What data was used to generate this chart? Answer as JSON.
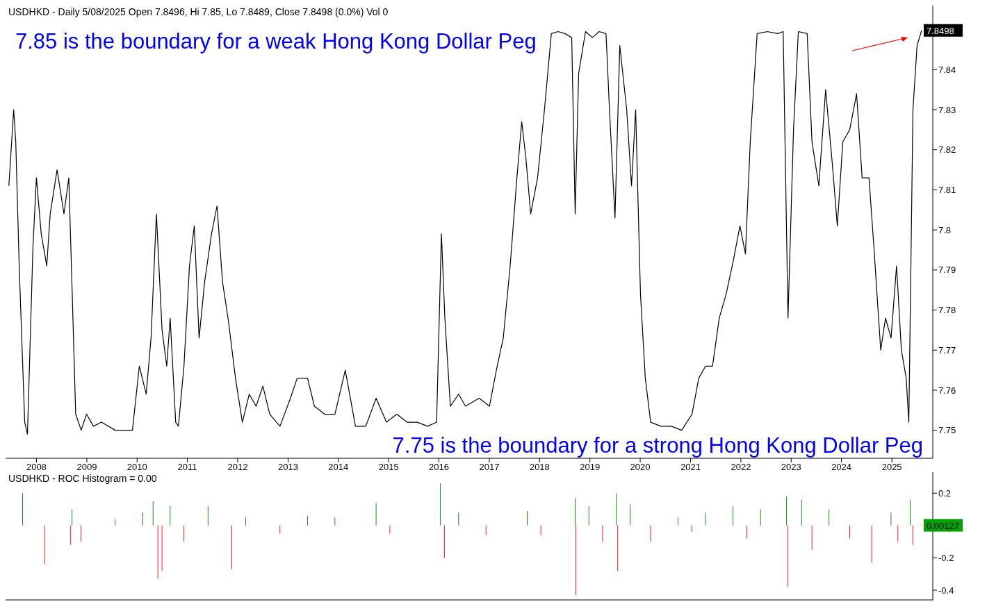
{
  "chart_data": [
    {
      "type": "line",
      "title": "USDHKD - Daily 5/08/2025 Open 7.8496, Hi 7.85, Lo 7.8489, Close 7.8498 (0.0%) Vol 0",
      "annotations": [
        "7.85 is the boundary for a weak Hong Kong Dollar Peg",
        "7.75 is the boundary for a strong Hong Kong Dollar Peg"
      ],
      "x": [
        "2007-06-15",
        "2007-07-20",
        "2007-08-04",
        "2007-08-29",
        "2007-10-08",
        "2007-10-28",
        "2007-12-07",
        "2008-01-01",
        "2008-02-05",
        "2008-03-16",
        "2008-04-10",
        "2008-05-30",
        "2008-07-19",
        "2008-08-23",
        "2008-09-17",
        "2008-10-12",
        "2008-11-21",
        "2008-12-30",
        "2009-02-18",
        "2009-04-17",
        "2009-07-26",
        "2009-11-28",
        "2010-01-17",
        "2010-03-08",
        "2010-04-12",
        "2010-05-21",
        "2010-07-01",
        "2010-08-04",
        "2010-08-29",
        "2010-10-08",
        "2010-10-28",
        "2010-12-07",
        "2011-01-16",
        "2011-02-20",
        "2011-03-27",
        "2011-05-06",
        "2011-06-25",
        "2011-08-04",
        "2011-09-13",
        "2011-10-27",
        "2011-12-16",
        "2012-02-04",
        "2012-03-25",
        "2012-05-14",
        "2012-07-02",
        "2012-08-21",
        "2012-11-03",
        "2013-01-18",
        "2013-03-08",
        "2013-05-22",
        "2013-07-11",
        "2013-09-24",
        "2013-12-07",
        "2014-02-20",
        "2014-05-05",
        "2014-07-19",
        "2014-10-02",
        "2014-12-16",
        "2015-03-01",
        "2015-05-15",
        "2015-07-28",
        "2015-10-11",
        "2015-12-15",
        "2016-01-19",
        "2016-02-13",
        "2016-03-24",
        "2016-05-23",
        "2016-07-12",
        "2016-10-19",
        "2017-01-02",
        "2017-02-21",
        "2017-04-12",
        "2017-06-01",
        "2017-07-20",
        "2017-08-24",
        "2017-09-23",
        "2017-10-28",
        "2017-12-17",
        "2018-02-05",
        "2018-03-27",
        "2018-05-15",
        "2018-07-04",
        "2018-08-22",
        "2018-09-16",
        "2018-10-11",
        "2018-11-30",
        "2019-01-19",
        "2019-03-09",
        "2019-04-28",
        "2019-05-23",
        "2019-07-02",
        "2019-08-06",
        "2019-09-25",
        "2019-10-30",
        "2019-11-29",
        "2020-01-03",
        "2020-02-07",
        "2020-03-17",
        "2020-05-31",
        "2020-08-14",
        "2020-10-28",
        "2021-01-11",
        "2021-03-01",
        "2021-04-20",
        "2021-06-09",
        "2021-07-28",
        "2021-09-16",
        "2021-11-05",
        "2021-12-25",
        "2022-02-03",
        "2022-03-10",
        "2022-04-29",
        "2022-07-12",
        "2022-09-25",
        "2022-11-04",
        "2022-12-09",
        "2023-01-18",
        "2023-02-22",
        "2023-04-27",
        "2023-06-01",
        "2023-07-21",
        "2023-09-08",
        "2023-10-28",
        "2023-12-02",
        "2024-01-11",
        "2024-03-01",
        "2024-04-20",
        "2024-05-30",
        "2024-07-19",
        "2024-08-23",
        "2024-10-12",
        "2024-11-16",
        "2024-12-26",
        "2025-02-04",
        "2025-03-11",
        "2025-04-15",
        "2025-05-04",
        "2025-06-03",
        "2025-07-03",
        "2025-08-05"
      ],
      "series": [
        {
          "color": "#000000",
          "values": [
            7.811,
            7.83,
            7.822,
            7.791,
            7.752,
            7.749,
            7.796,
            7.813,
            7.799,
            7.791,
            7.804,
            7.815,
            7.804,
            7.813,
            7.784,
            7.754,
            7.75,
            7.754,
            7.751,
            7.752,
            7.75,
            7.75,
            7.766,
            7.759,
            7.773,
            7.804,
            7.775,
            7.766,
            7.778,
            7.752,
            7.751,
            7.766,
            7.791,
            7.801,
            7.773,
            7.787,
            7.799,
            7.806,
            7.787,
            7.777,
            7.763,
            7.752,
            7.759,
            7.756,
            7.761,
            7.754,
            7.751,
            7.758,
            7.763,
            7.763,
            7.756,
            7.754,
            7.754,
            7.765,
            7.751,
            7.751,
            7.758,
            7.752,
            7.754,
            7.752,
            7.752,
            7.751,
            7.752,
            7.799,
            7.778,
            7.756,
            7.759,
            7.756,
            7.758,
            7.756,
            7.765,
            7.773,
            7.791,
            7.813,
            7.827,
            7.818,
            7.804,
            7.813,
            7.83,
            7.849,
            7.8495,
            7.849,
            7.848,
            7.804,
            7.839,
            7.8495,
            7.848,
            7.8495,
            7.849,
            7.83,
            7.803,
            7.846,
            7.83,
            7.811,
            7.83,
            7.784,
            7.763,
            7.752,
            7.751,
            7.751,
            7.75,
            7.754,
            7.763,
            7.766,
            7.766,
            7.778,
            7.784,
            7.792,
            7.801,
            7.794,
            7.822,
            7.849,
            7.8495,
            7.849,
            7.8495,
            7.778,
            7.825,
            7.8495,
            7.849,
            7.822,
            7.811,
            7.835,
            7.816,
            7.801,
            7.822,
            7.825,
            7.834,
            7.813,
            7.813,
            7.796,
            7.77,
            7.778,
            7.773,
            7.791,
            7.77,
            7.763,
            7.752,
            7.83,
            7.846,
            7.8498
          ],
          "value_labels": [
            null,
            null,
            null,
            null,
            null,
            null,
            null,
            null,
            null,
            null,
            null,
            null,
            null,
            null,
            null,
            null,
            null,
            null,
            null,
            null,
            null,
            null,
            null,
            null,
            null,
            null,
            null,
            null,
            null,
            null,
            null,
            null,
            null,
            null,
            null,
            null,
            null,
            null,
            null,
            null,
            null,
            null,
            null,
            null,
            null,
            null,
            null,
            null,
            null,
            null,
            null,
            null,
            null,
            null,
            null,
            null,
            null,
            null,
            null,
            null,
            null,
            null,
            null,
            null,
            null,
            null,
            null,
            null,
            null,
            null,
            null,
            null,
            null,
            null,
            null,
            null,
            null,
            null,
            null,
            null,
            null,
            null,
            null,
            null,
            null,
            null,
            null,
            null,
            null,
            null,
            null,
            null,
            null,
            null,
            null,
            null,
            null,
            null,
            null,
            null,
            null,
            null,
            null,
            null,
            null,
            null,
            null,
            null,
            null,
            null,
            null,
            null,
            null,
            null,
            null,
            null,
            null,
            null,
            null,
            null,
            null,
            null,
            null,
            null,
            null,
            null,
            null,
            null,
            null,
            null,
            null,
            null,
            null,
            null,
            null,
            null,
            null,
            null,
            null,
            "7.8498"
          ]
        }
      ],
      "xlim": [
        "2007-05-22",
        "2025-10-25"
      ],
      "xticks": [
        {
          "value": "2008-01-01",
          "label": "2008"
        },
        {
          "value": "2009-01-01",
          "label": "2009"
        },
        {
          "value": "2010-01-01",
          "label": "2010"
        },
        {
          "value": "2011-01-01",
          "label": "2011"
        },
        {
          "value": "2012-01-01",
          "label": "2012"
        },
        {
          "value": "2013-01-01",
          "label": "2013"
        },
        {
          "value": "2014-01-01",
          "label": "2014"
        },
        {
          "value": "2015-01-01",
          "label": "2015"
        },
        {
          "value": "2016-01-01",
          "label": "2016"
        },
        {
          "value": "2017-01-01",
          "label": "2017"
        },
        {
          "value": "2018-01-01",
          "label": "2018"
        },
        {
          "value": "2019-01-01",
          "label": "2019"
        },
        {
          "value": "2020-01-01",
          "label": "2020"
        },
        {
          "value": "2021-01-01",
          "label": "2021"
        },
        {
          "value": "2022-01-01",
          "label": "2022"
        },
        {
          "value": "2023-01-01",
          "label": "2023"
        },
        {
          "value": "2024-01-01",
          "label": "2024"
        },
        {
          "value": "2025-01-01",
          "label": "2025"
        }
      ],
      "ylim": [
        7.743,
        7.856
      ],
      "yticks": [
        7.75,
        7.76,
        7.77,
        7.78,
        7.79,
        7.8,
        7.81,
        7.82,
        7.83,
        7.84
      ],
      "marker": "none",
      "line_style": "solid"
    },
    {
      "type": "bar",
      "title": "USDHKD - ROC Histogram = 0.00",
      "x": [
        "2007-09-23",
        "2008-03-01",
        "2008-09-06",
        "2008-09-16",
        "2008-11-20",
        "2009-07-26",
        "2010-02-12",
        "2010-04-27",
        "2010-06-01",
        "2010-07-01",
        "2010-08-29",
        "2010-12-07",
        "2011-05-31",
        "2011-11-20",
        "2012-02-28",
        "2012-11-03",
        "2013-05-22",
        "2013-12-07",
        "2014-10-02",
        "2015-01-10",
        "2016-01-12",
        "2016-02-10",
        "2016-05-23",
        "2016-12-08",
        "2017-10-03",
        "2018-01-10",
        "2018-09-16",
        "2018-09-21",
        "2018-12-25",
        "2019-04-03",
        "2019-07-12",
        "2019-07-22",
        "2019-10-20",
        "2020-03-17",
        "2020-10-03",
        "2021-01-11",
        "2021-04-20",
        "2021-11-05",
        "2022-02-13",
        "2022-05-24",
        "2022-11-29",
        "2022-12-09",
        "2023-03-18",
        "2023-06-01",
        "2023-10-03",
        "2024-03-01",
        "2024-08-08",
        "2024-12-26",
        "2025-02-14",
        "2025-05-14",
        "2025-06-03",
        "2025-08-05"
      ],
      "values": [
        0.2,
        -0.24,
        -0.12,
        0.1,
        -0.1,
        0.04,
        0.08,
        0.15,
        -0.33,
        -0.28,
        0.12,
        -0.1,
        0.12,
        -0.27,
        0.05,
        -0.05,
        0.06,
        0.05,
        0.14,
        -0.05,
        0.26,
        -0.2,
        0.08,
        -0.06,
        0.09,
        -0.06,
        0.17,
        -0.43,
        0.12,
        -0.1,
        0.2,
        -0.28,
        0.13,
        -0.1,
        0.05,
        -0.04,
        0.08,
        0.12,
        -0.08,
        0.1,
        0.18,
        -0.38,
        0.16,
        -0.15,
        0.1,
        -0.08,
        -0.23,
        0.08,
        -0.1,
        0.16,
        -0.12,
        0.00127
      ],
      "colors": [
        "#008000",
        "#ff0000",
        "#ff0000",
        "#008000",
        "#ff0000",
        "#008000",
        "#008000",
        "#008000",
        "#ff0000",
        "#ff0000",
        "#008000",
        "#ff0000",
        "#008000",
        "#ff0000",
        "#008000",
        "#ff0000",
        "#008000",
        "#008000",
        "#008000",
        "#ff0000",
        "#008000",
        "#ff0000",
        "#008000",
        "#ff0000",
        "#008000",
        "#ff0000",
        "#008000",
        "#ff0000",
        "#008000",
        "#ff0000",
        "#008000",
        "#ff0000",
        "#008000",
        "#ff0000",
        "#008000",
        "#ff0000",
        "#008000",
        "#008000",
        "#ff0000",
        "#008000",
        "#008000",
        "#ff0000",
        "#008000",
        "#ff0000",
        "#008000",
        "#ff0000",
        "#ff0000",
        "#008000",
        "#ff0000",
        "#008000",
        "#ff0000",
        "#008000"
      ],
      "annotations": [
        {
          "text": "0.00127",
          "x": "2025-08-05",
          "y": 0.00127
        }
      ],
      "xlim": [
        "2007-05-22",
        "2025-10-25"
      ],
      "ylim": [
        -0.46,
        0.33
      ],
      "yticks": [
        -0.4,
        -0.2,
        0.2
      ],
      "tick_labels": "y"
    }
  ]
}
